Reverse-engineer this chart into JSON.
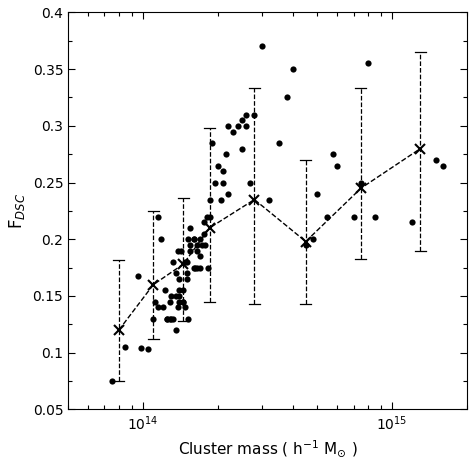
{
  "scatter_x": [
    75000000000000.0,
    85000000000000.0,
    95000000000000.0,
    98000000000000.0,
    105000000000000.0,
    110000000000000.0,
    112000000000000.0,
    115000000000000.0,
    115000000000000.0,
    118000000000000.0,
    120000000000000.0,
    122000000000000.0,
    125000000000000.0,
    125000000000000.0,
    128000000000000.0,
    128000000000000.0,
    130000000000000.0,
    130000000000000.0,
    132000000000000.0,
    132000000000000.0,
    135000000000000.0,
    135000000000000.0,
    135000000000000.0,
    138000000000000.0,
    138000000000000.0,
    140000000000000.0,
    140000000000000.0,
    140000000000000.0,
    140000000000000.0,
    142000000000000.0,
    145000000000000.0,
    145000000000000.0,
    145000000000000.0,
    148000000000000.0,
    148000000000000.0,
    150000000000000.0,
    150000000000000.0,
    150000000000000.0,
    152000000000000.0,
    152000000000000.0,
    155000000000000.0,
    155000000000000.0,
    155000000000000.0,
    160000000000000.0,
    160000000000000.0,
    160000000000000.0,
    162000000000000.0,
    165000000000000.0,
    165000000000000.0,
    165000000000000.0,
    170000000000000.0,
    170000000000000.0,
    170000000000000.0,
    172000000000000.0,
    175000000000000.0,
    175000000000000.0,
    178000000000000.0,
    180000000000000.0,
    182000000000000.0,
    185000000000000.0,
    185000000000000.0,
    190000000000000.0,
    195000000000000.0,
    200000000000000.0,
    205000000000000.0,
    210000000000000.0,
    210000000000000.0,
    215000000000000.0,
    220000000000000.0,
    220000000000000.0,
    230000000000000.0,
    240000000000000.0,
    250000000000000.0,
    250000000000000.0,
    260000000000000.0,
    260000000000000.0,
    270000000000000.0,
    280000000000000.0,
    300000000000000.0,
    320000000000000.0,
    350000000000000.0,
    380000000000000.0,
    400000000000000.0,
    450000000000000.0,
    480000000000000.0,
    500000000000000.0,
    550000000000000.0,
    580000000000000.0,
    600000000000000.0,
    700000000000000.0,
    750000000000000.0,
    800000000000000.0,
    850000000000000.0,
    1200000000000000.0,
    1500000000000000.0,
    1600000000000000.0
  ],
  "scatter_y": [
    0.075,
    0.105,
    0.168,
    0.104,
    0.103,
    0.13,
    0.145,
    0.14,
    0.22,
    0.2,
    0.14,
    0.155,
    0.13,
    0.13,
    0.13,
    0.145,
    0.13,
    0.15,
    0.13,
    0.18,
    0.12,
    0.15,
    0.17,
    0.14,
    0.19,
    0.145,
    0.15,
    0.155,
    0.165,
    0.19,
    0.145,
    0.145,
    0.155,
    0.14,
    0.18,
    0.165,
    0.17,
    0.18,
    0.13,
    0.2,
    0.19,
    0.195,
    0.21,
    0.175,
    0.2,
    0.2,
    0.175,
    0.195,
    0.19,
    0.175,
    0.185,
    0.175,
    0.2,
    0.195,
    0.205,
    0.215,
    0.195,
    0.22,
    0.175,
    0.22,
    0.235,
    0.285,
    0.25,
    0.265,
    0.235,
    0.25,
    0.26,
    0.275,
    0.24,
    0.3,
    0.295,
    0.3,
    0.28,
    0.305,
    0.3,
    0.31,
    0.25,
    0.31,
    0.37,
    0.235,
    0.285,
    0.325,
    0.35,
    0.195,
    0.2,
    0.24,
    0.22,
    0.275,
    0.265,
    0.22,
    0.25,
    0.355,
    0.22,
    0.215,
    0.27,
    0.265
  ],
  "bin_x": [
    80000000000000.0,
    110000000000000.0,
    145000000000000.0,
    185000000000000.0,
    280000000000000.0,
    450000000000000.0,
    750000000000000.0,
    1300000000000000.0
  ],
  "bin_y": [
    0.12,
    0.16,
    0.178,
    0.21,
    0.235,
    0.198,
    0.245,
    0.28
  ],
  "bin_yerr_lo": [
    0.045,
    0.048,
    0.05,
    0.065,
    0.092,
    0.055,
    0.062,
    0.09
  ],
  "bin_yerr_hi": [
    0.062,
    0.065,
    0.058,
    0.088,
    0.098,
    0.072,
    0.088,
    0.085
  ],
  "ylabel": "F$_{DSC}$",
  "xlabel": "Cluster mass ( h$^{-1}$ M$_{\\odot}$ )",
  "ylim": [
    0.05,
    0.4
  ],
  "xlim": [
    50000000000000.0,
    2000000000000000.0
  ],
  "yticks": [
    0.05,
    0.1,
    0.15,
    0.2,
    0.25,
    0.3,
    0.35,
    0.4
  ],
  "xticks_major": [
    100000000000000.0,
    1000000000000000.0
  ]
}
